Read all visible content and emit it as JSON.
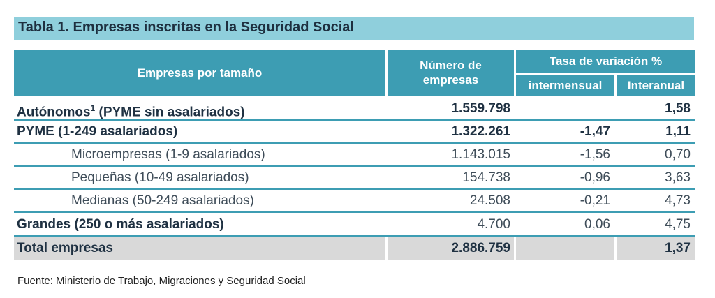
{
  "title": "Tabla 1. Empresas inscritas en la Seguridad Social",
  "headers": {
    "size": "Empresas por tamaño",
    "count_line1": "Número de",
    "count_line2": "empresas",
    "rate": "Tasa de variación %",
    "monthly": "intermensual",
    "yearly": "Interanual"
  },
  "rows": [
    {
      "label": "Autónomos",
      "sup": "1",
      "label_rest": " (PYME sin  asalariados)",
      "count": "1.559.798",
      "monthly": "",
      "yearly": "1,58"
    },
    {
      "label": "PYME (1-249 asalariados)",
      "count": "1.322.261",
      "monthly": "-1,47",
      "yearly": "1,11"
    },
    {
      "label": "Microempresas (1-9 asalariados)",
      "count": "1.143.015",
      "monthly": "-1,56",
      "yearly": "0,70"
    },
    {
      "label": "Pequeñas (10-49 asalariados)",
      "count": "154.738",
      "monthly": "-0,96",
      "yearly": "3,63"
    },
    {
      "label": "Medianas (50-249 asalariados)",
      "count": "24.508",
      "monthly": "-0,21",
      "yearly": "4,73"
    },
    {
      "label": "Grandes (250 o más asalariados)",
      "count": "4.700",
      "monthly": "0,06",
      "yearly": "4,75"
    },
    {
      "label": "Total empresas",
      "count": "2.886.759",
      "monthly": "",
      "yearly": "1,37"
    }
  ],
  "source": "Fuente: Ministerio de Trabajo, Migraciones y Seguridad Social",
  "colors": {
    "header_bg": "#3d9db3",
    "title_bg": "#8fcfdc",
    "total_bg": "#d9d9d9"
  }
}
